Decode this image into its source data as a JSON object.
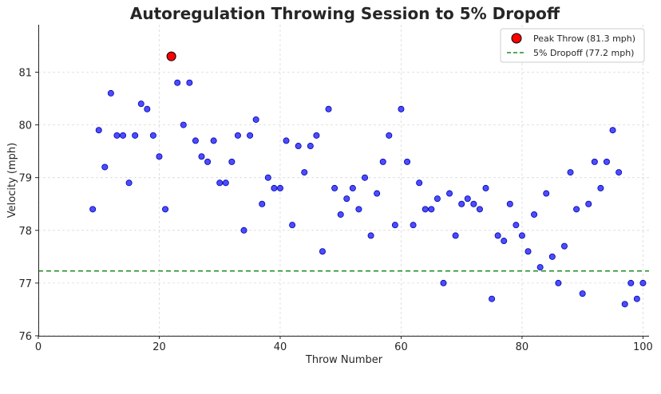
{
  "chart_data": {
    "type": "scatter",
    "title": "Autoregulation Throwing Session to 5% Dropoff",
    "xlabel": "Throw Number",
    "ylabel": "Velocity (mph)",
    "xlim": [
      0,
      101
    ],
    "ylim": [
      76,
      81.9
    ],
    "xticks": [
      0,
      20,
      40,
      60,
      80,
      100
    ],
    "yticks": [
      76,
      77,
      78,
      79,
      80,
      81
    ],
    "grid": true,
    "legend_position": "top-right",
    "colors": {
      "points": "#0000ff",
      "peak": "#ff0000",
      "dropoff": "#228b22"
    },
    "series": [
      {
        "name": "",
        "x": [
          9,
          10,
          11,
          12,
          13,
          14,
          15,
          16,
          17,
          18,
          19,
          20,
          21,
          23,
          24,
          25,
          26,
          27,
          28,
          29,
          30,
          31,
          32,
          33,
          34,
          35,
          36,
          37,
          38,
          39,
          40,
          41,
          42,
          43,
          44,
          45,
          46,
          47,
          48,
          49,
          50,
          51,
          52,
          53,
          54,
          55,
          56,
          57,
          58,
          59,
          60,
          61,
          62,
          63,
          64,
          65,
          66,
          67,
          68,
          69,
          70,
          71,
          72,
          73,
          74,
          75,
          76,
          77,
          78,
          79,
          80,
          81,
          82,
          83,
          84,
          85,
          86,
          87,
          88,
          89,
          90,
          91,
          92,
          93,
          94,
          95,
          96,
          97,
          98,
          99,
          100
        ],
        "y": [
          78.4,
          79.9,
          79.2,
          80.6,
          79.8,
          79.8,
          78.9,
          79.8,
          80.4,
          80.3,
          79.8,
          79.4,
          78.4,
          80.8,
          80.0,
          80.8,
          79.7,
          79.4,
          79.3,
          79.7,
          78.9,
          78.9,
          79.3,
          79.8,
          78.0,
          79.8,
          80.1,
          78.5,
          79.0,
          78.8,
          78.8,
          79.7,
          78.1,
          79.6,
          79.1,
          79.6,
          79.8,
          77.6,
          80.3,
          78.8,
          78.3,
          78.6,
          78.8,
          78.4,
          79.0,
          77.9,
          78.7,
          79.3,
          79.8,
          78.1,
          80.3,
          79.3,
          78.1,
          78.9,
          78.4,
          78.4,
          78.6,
          77.0,
          78.7,
          77.9,
          78.5,
          78.6,
          78.5,
          78.4,
          78.8,
          76.7,
          77.9,
          77.8,
          78.5,
          78.1,
          77.9,
          77.6,
          78.3,
          77.3,
          78.7,
          77.5,
          77.0,
          77.7,
          79.1,
          78.4,
          76.8,
          78.5,
          79.3,
          78.8,
          79.3,
          79.9,
          79.1,
          76.6,
          77.0,
          76.7,
          77.0
        ]
      },
      {
        "name": "Peak Throw (81.3 mph)",
        "x": [
          22
        ],
        "y": [
          81.3
        ]
      }
    ],
    "reference_lines": [
      {
        "name": "5% Dropoff (77.2 mph)",
        "y": 77.23,
        "style": "dashed"
      }
    ]
  }
}
